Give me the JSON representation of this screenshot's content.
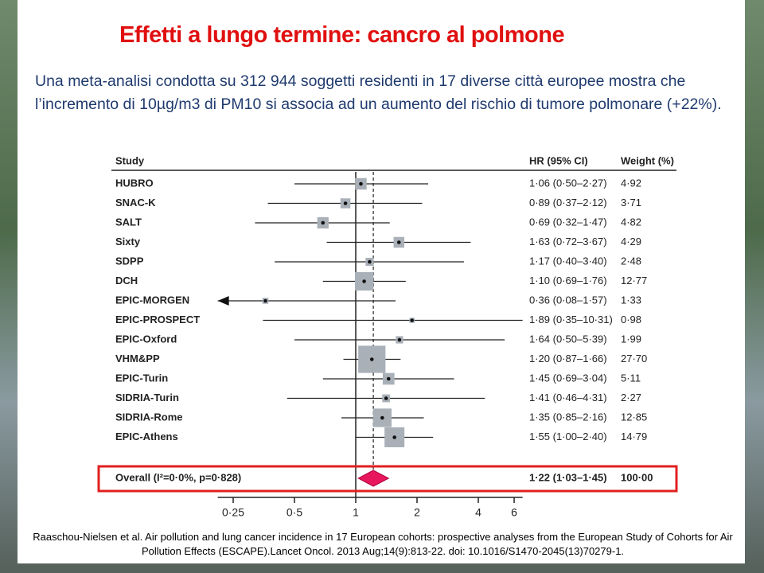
{
  "title": "Effetti a lungo termine: cancro al polmone",
  "text": "Una meta-analisi condotta su 312 944  soggetti residenti in 17 diverse città europee mostra  che l’incremento di 10µg/m3 di PM10 si associa ad un aumento del rischio di tumore polmonare (+22%).",
  "citation": "Raaschou-Nielsen et al. Air pollution and lung cancer incidence in 17 European cohorts: prospective analyses from the European Study of Cohorts for Air Pollution Effects (ESCAPE).Lancet Oncol. 2013 Aug;14(9):813-22. doi: 10.1016/S1470-2045(13)70279-1.",
  "chart_data": {
    "type": "forest",
    "xlog": true,
    "headers": [
      "Study",
      "HR (95% CI)",
      "Weight (%)"
    ],
    "xlim": [
      0.21,
      6.6
    ],
    "xticks": [
      {
        "value": 0.25,
        "label": "0·25"
      },
      {
        "value": 0.5,
        "label": "0·5"
      },
      1,
      2,
      4,
      6
    ],
    "studies": [
      {
        "name": "HUBRO",
        "hr": 1.06,
        "lo": 0.5,
        "hi": 2.27,
        "hr_label": "1·06 (0·50–2·27)",
        "weight": 4.92,
        "weight_label": "4·92"
      },
      {
        "name": "SNAC-K",
        "hr": 0.89,
        "lo": 0.37,
        "hi": 2.12,
        "hr_label": "0·89 (0·37–2·12)",
        "weight": 3.71,
        "weight_label": "3·71"
      },
      {
        "name": "SALT",
        "hr": 0.69,
        "lo": 0.32,
        "hi": 1.47,
        "hr_label": "0·69 (0·32–1·47)",
        "weight": 4.82,
        "weight_label": "4·82"
      },
      {
        "name": "Sixty",
        "hr": 1.63,
        "lo": 0.72,
        "hi": 3.67,
        "hr_label": "1·63 (0·72–3·67)",
        "weight": 4.29,
        "weight_label": "4·29"
      },
      {
        "name": "SDPP",
        "hr": 1.17,
        "lo": 0.4,
        "hi": 3.4,
        "hr_label": "1·17 (0·40–3·40)",
        "weight": 2.48,
        "weight_label": "2·48"
      },
      {
        "name": "DCH",
        "hr": 1.1,
        "lo": 0.69,
        "hi": 1.76,
        "hr_label": "1·10 (0·69–1·76)",
        "weight": 12.77,
        "weight_label": "12·77"
      },
      {
        "name": "EPIC-MORGEN",
        "hr": 0.36,
        "lo": 0.08,
        "hi": 1.57,
        "hr_label": "0·36 (0·08–1·57)",
        "weight": 1.33,
        "weight_label": "1·33"
      },
      {
        "name": "EPIC-PROSPECT",
        "hr": 1.89,
        "lo": 0.35,
        "hi": 10.31,
        "hr_label": "1·89 (0·35–10·31)",
        "weight": 0.98,
        "weight_label": "0·98"
      },
      {
        "name": "EPIC-Oxford",
        "hr": 1.64,
        "lo": 0.5,
        "hi": 5.39,
        "hr_label": "1·64 (0·50–5·39)",
        "weight": 1.99,
        "weight_label": "1·99"
      },
      {
        "name": "VHM&PP",
        "hr": 1.2,
        "lo": 0.87,
        "hi": 1.66,
        "hr_label": "1·20 (0·87–1·66)",
        "weight": 27.7,
        "weight_label": "27·70"
      },
      {
        "name": "EPIC-Turin",
        "hr": 1.45,
        "lo": 0.69,
        "hi": 3.04,
        "hr_label": "1·45 (0·69–3·04)",
        "weight": 5.11,
        "weight_label": "5·11"
      },
      {
        "name": "SIDRIA-Turin",
        "hr": 1.41,
        "lo": 0.46,
        "hi": 4.31,
        "hr_label": "1·41 (0·46–4·31)",
        "weight": 2.27,
        "weight_label": "2·27"
      },
      {
        "name": "SIDRIA-Rome",
        "hr": 1.35,
        "lo": 0.85,
        "hi": 2.16,
        "hr_label": "1·35 (0·85–2·16)",
        "weight": 12.85,
        "weight_label": "12·85"
      },
      {
        "name": "EPIC-Athens",
        "hr": 1.55,
        "lo": 1.0,
        "hi": 2.4,
        "hr_label": "1·55 (1·00–2·40)",
        "weight": 14.79,
        "weight_label": "14·79"
      }
    ],
    "overall": {
      "name": "Overall (I²=0·0%, p=0·828)",
      "hr": 1.22,
      "lo": 1.03,
      "hi": 1.45,
      "hr_label": "1·22 (1·03–1·45)",
      "weight": 100,
      "weight_label": "100·00"
    }
  }
}
